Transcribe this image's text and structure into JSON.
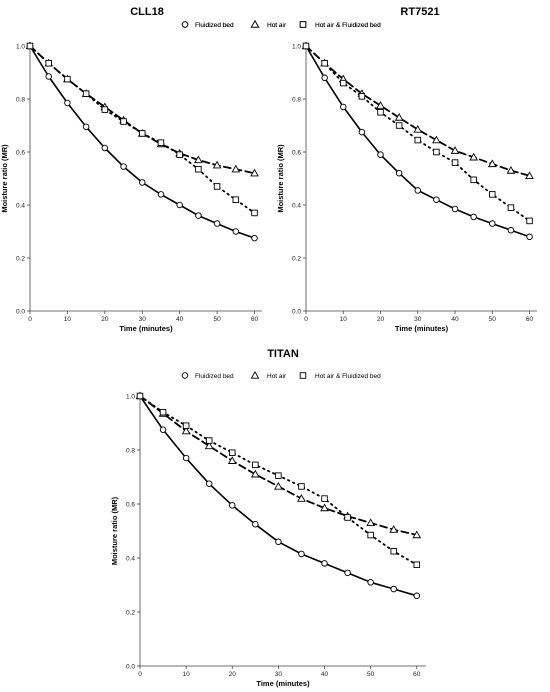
{
  "colors": {
    "line": "#000000",
    "axis": "#444444",
    "background": "#ffffff"
  },
  "chart_data": [
    {
      "type": "line",
      "title": "CLL18",
      "xlabel": "Time (minutes)",
      "ylabel": "Moisture ratio (MR)",
      "xlim": [
        0,
        62
      ],
      "ylim": [
        0,
        1.0
      ],
      "xticks": [
        0,
        10,
        20,
        30,
        40,
        50,
        60
      ],
      "yticks": [
        0.0,
        0.2,
        0.4,
        0.6,
        0.8,
        1.0
      ],
      "grid": false,
      "legend": "top-right",
      "series": [
        {
          "name": "Fluidized bed",
          "marker": "circle",
          "linestyle": "solid",
          "x": [
            0,
            5,
            10,
            15,
            20,
            25,
            30,
            35,
            40,
            45,
            50,
            55,
            60
          ],
          "y": [
            1.0,
            0.885,
            0.785,
            0.695,
            0.615,
            0.545,
            0.485,
            0.44,
            0.4,
            0.36,
            0.33,
            0.3,
            0.275
          ]
        },
        {
          "name": "Hot air",
          "marker": "triangle",
          "linestyle": "dashed",
          "x": [
            0,
            5,
            10,
            15,
            20,
            25,
            30,
            35,
            40,
            45,
            50,
            55,
            60
          ],
          "y": [
            1.0,
            0.935,
            0.875,
            0.82,
            0.77,
            0.72,
            0.67,
            0.63,
            0.595,
            0.57,
            0.55,
            0.535,
            0.52
          ]
        },
        {
          "name": "Hot air & Fluidized bed",
          "marker": "square",
          "linestyle": "dotted",
          "x": [
            0,
            5,
            10,
            15,
            20,
            25,
            30,
            35,
            40,
            45,
            50,
            55,
            60
          ],
          "y": [
            1.0,
            0.935,
            0.875,
            0.82,
            0.76,
            0.715,
            0.67,
            0.635,
            0.59,
            0.535,
            0.47,
            0.42,
            0.37
          ]
        }
      ]
    },
    {
      "type": "line",
      "title": "RT7521",
      "xlabel": "Time (minutes)",
      "ylabel": "Moisture ratio (MR)",
      "xlim": [
        0,
        62
      ],
      "ylim": [
        0,
        1.0
      ],
      "xticks": [
        0,
        10,
        20,
        30,
        40,
        50,
        60
      ],
      "yticks": [
        0.0,
        0.2,
        0.4,
        0.6,
        0.8,
        1.0
      ],
      "grid": false,
      "legend": "top-right",
      "series": [
        {
          "name": "Fluidized bed",
          "marker": "circle",
          "linestyle": "solid",
          "x": [
            0,
            5,
            10,
            15,
            20,
            25,
            30,
            35,
            40,
            45,
            50,
            55,
            60
          ],
          "y": [
            1.0,
            0.88,
            0.77,
            0.675,
            0.59,
            0.52,
            0.455,
            0.42,
            0.385,
            0.355,
            0.33,
            0.305,
            0.28
          ]
        },
        {
          "name": "Hot air",
          "marker": "triangle",
          "linestyle": "dashed",
          "x": [
            0,
            5,
            10,
            15,
            20,
            25,
            30,
            35,
            40,
            45,
            50,
            55,
            60
          ],
          "y": [
            1.0,
            0.935,
            0.875,
            0.82,
            0.775,
            0.73,
            0.685,
            0.645,
            0.605,
            0.58,
            0.555,
            0.53,
            0.51
          ]
        },
        {
          "name": "Hot air & Fluidized bed",
          "marker": "square",
          "linestyle": "dotted",
          "x": [
            0,
            5,
            10,
            15,
            20,
            25,
            30,
            35,
            40,
            45,
            50,
            55,
            60
          ],
          "y": [
            1.0,
            0.935,
            0.86,
            0.81,
            0.75,
            0.7,
            0.645,
            0.6,
            0.56,
            0.495,
            0.44,
            0.39,
            0.34
          ]
        }
      ]
    },
    {
      "type": "line",
      "title": "TITAN",
      "xlabel": "Time (minutes)",
      "ylabel": "Moisture ratio (MR)",
      "xlim": [
        0,
        62
      ],
      "ylim": [
        0,
        1.0
      ],
      "xticks": [
        0,
        10,
        20,
        30,
        40,
        50,
        60
      ],
      "yticks": [
        0.0,
        0.2,
        0.4,
        0.6,
        0.8,
        1.0
      ],
      "grid": false,
      "legend": "top-right",
      "series": [
        {
          "name": "Fluidized bed",
          "marker": "circle",
          "linestyle": "solid",
          "x": [
            0,
            5,
            10,
            15,
            20,
            25,
            30,
            35,
            40,
            45,
            50,
            55,
            60
          ],
          "y": [
            1.0,
            0.875,
            0.77,
            0.675,
            0.595,
            0.525,
            0.46,
            0.415,
            0.38,
            0.345,
            0.31,
            0.285,
            0.26
          ]
        },
        {
          "name": "Hot air",
          "marker": "triangle",
          "linestyle": "dashed",
          "x": [
            0,
            5,
            10,
            15,
            20,
            25,
            30,
            35,
            40,
            45,
            50,
            55,
            60
          ],
          "y": [
            1.0,
            0.935,
            0.87,
            0.815,
            0.76,
            0.71,
            0.665,
            0.62,
            0.585,
            0.555,
            0.53,
            0.505,
            0.485
          ]
        },
        {
          "name": "Hot air & Fluidized bed",
          "marker": "square",
          "linestyle": "dotted",
          "x": [
            0,
            5,
            10,
            15,
            20,
            25,
            30,
            35,
            40,
            45,
            50,
            55,
            60
          ],
          "y": [
            1.0,
            0.94,
            0.89,
            0.835,
            0.79,
            0.745,
            0.705,
            0.665,
            0.62,
            0.55,
            0.485,
            0.425,
            0.375
          ]
        }
      ]
    }
  ]
}
